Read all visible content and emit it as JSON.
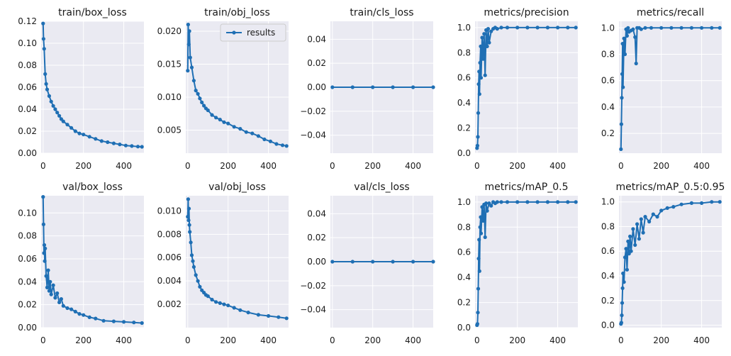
{
  "chart_data": [
    {
      "type": "line",
      "title": "train/box_loss",
      "xlim": [
        -10,
        500
      ],
      "ylim": [
        0,
        0.12
      ],
      "xticks": [
        0,
        200,
        400
      ],
      "xtick_labels": [
        "0",
        "200",
        "400"
      ],
      "yticks": [
        0.0,
        0.02,
        0.04,
        0.06,
        0.08,
        0.1,
        0.12
      ],
      "ytick_labels": [
        "0.00",
        "0.02",
        "0.04",
        "0.06",
        "0.08",
        "0.10",
        "0.12"
      ],
      "series": [
        {
          "name": "results",
          "color": "#1f6fb4",
          "x": [
            0,
            2,
            5,
            10,
            15,
            20,
            30,
            40,
            50,
            60,
            70,
            80,
            90,
            100,
            120,
            140,
            160,
            180,
            200,
            230,
            260,
            290,
            320,
            350,
            380,
            410,
            440,
            470,
            490
          ],
          "y": [
            0.118,
            0.104,
            0.095,
            0.072,
            0.063,
            0.058,
            0.052,
            0.047,
            0.043,
            0.04,
            0.037,
            0.034,
            0.031,
            0.029,
            0.026,
            0.023,
            0.02,
            0.018,
            0.017,
            0.015,
            0.013,
            0.011,
            0.01,
            0.009,
            0.008,
            0.007,
            0.0065,
            0.006,
            0.0058
          ]
        }
      ]
    },
    {
      "type": "line",
      "title": "train/obj_loss",
      "xlim": [
        -10,
        500
      ],
      "ylim": [
        0.0015,
        0.0215
      ],
      "xticks": [
        0,
        200,
        400
      ],
      "xtick_labels": [
        "0",
        "200",
        "400"
      ],
      "yticks": [
        0.005,
        0.01,
        0.015,
        0.02
      ],
      "ytick_labels": [
        "0.005",
        "0.010",
        "0.015",
        "0.020"
      ],
      "legend": {
        "labels": [
          "results"
        ],
        "location": "upper right"
      },
      "series": [
        {
          "name": "results",
          "color": "#1f6fb4",
          "x": [
            0,
            2,
            5,
            8,
            12,
            20,
            30,
            40,
            50,
            60,
            70,
            80,
            90,
            100,
            120,
            140,
            160,
            180,
            200,
            230,
            260,
            290,
            320,
            350,
            380,
            410,
            440,
            470,
            490
          ],
          "y": [
            0.014,
            0.021,
            0.018,
            0.02,
            0.016,
            0.0145,
            0.0125,
            0.011,
            0.0105,
            0.0098,
            0.0092,
            0.0087,
            0.0083,
            0.008,
            0.0073,
            0.0069,
            0.0066,
            0.0062,
            0.006,
            0.0055,
            0.0052,
            0.0047,
            0.0045,
            0.0041,
            0.0036,
            0.0033,
            0.0029,
            0.0027,
            0.0026
          ]
        }
      ]
    },
    {
      "type": "line",
      "title": "train/cls_loss",
      "xlim": [
        -10,
        500
      ],
      "ylim": [
        -0.055,
        0.055
      ],
      "xticks": [
        0,
        200,
        400
      ],
      "xtick_labels": [
        "0",
        "200",
        "400"
      ],
      "yticks": [
        -0.04,
        -0.02,
        0.0,
        0.02,
        0.04
      ],
      "ytick_labels": [
        "−0.04",
        "−0.02",
        "0.00",
        "0.02",
        "0.04"
      ],
      "series": [
        {
          "name": "results",
          "color": "#1f6fb4",
          "x": [
            0,
            100,
            200,
            300,
            400,
            500
          ],
          "y": [
            0,
            0,
            0,
            0,
            0,
            0
          ]
        }
      ]
    },
    {
      "type": "line",
      "title": "metrics/precision",
      "xlim": [
        -10,
        500
      ],
      "ylim": [
        0.0,
        1.05
      ],
      "xticks": [
        0,
        200,
        400
      ],
      "xtick_labels": [
        "0",
        "200",
        "400"
      ],
      "yticks": [
        0.0,
        0.2,
        0.4,
        0.6,
        0.8,
        1.0
      ],
      "ytick_labels": [
        "0.0",
        "0.2",
        "0.4",
        "0.6",
        "0.8",
        "1.0"
      ],
      "series": [
        {
          "name": "results",
          "color": "#1f6fb4",
          "x": [
            0,
            2,
            4,
            6,
            8,
            10,
            12,
            15,
            18,
            20,
            25,
            30,
            35,
            40,
            45,
            50,
            55,
            60,
            70,
            80,
            90,
            100,
            120,
            150,
            200,
            250,
            300,
            350,
            400,
            450,
            490
          ],
          "y": [
            0.04,
            0.06,
            0.13,
            0.32,
            0.55,
            0.65,
            0.47,
            0.72,
            0.85,
            0.6,
            0.92,
            0.75,
            0.95,
            0.62,
            0.98,
            0.85,
            0.99,
            0.88,
            0.97,
            0.99,
            1.0,
            0.99,
            1.0,
            1.0,
            1.0,
            1.0,
            1.0,
            1.0,
            1.0,
            1.0,
            1.0
          ]
        }
      ]
    },
    {
      "type": "line",
      "title": "metrics/recall",
      "xlim": [
        -10,
        500
      ],
      "ylim": [
        0.05,
        1.05
      ],
      "xticks": [
        0,
        200,
        400
      ],
      "xtick_labels": [
        "0",
        "200",
        "400"
      ],
      "yticks": [
        0.2,
        0.4,
        0.6,
        0.8,
        1.0
      ],
      "ytick_labels": [
        "0.2",
        "0.4",
        "0.6",
        "0.8",
        "1.0"
      ],
      "series": [
        {
          "name": "results",
          "color": "#1f6fb4",
          "x": [
            0,
            2,
            4,
            6,
            8,
            10,
            15,
            20,
            25,
            30,
            35,
            40,
            50,
            60,
            70,
            75,
            80,
            90,
            100,
            120,
            150,
            200,
            250,
            300,
            350,
            400,
            450,
            490
          ],
          "y": [
            0.08,
            0.27,
            0.47,
            0.65,
            0.88,
            0.55,
            0.92,
            0.8,
            0.99,
            0.94,
            1.0,
            0.97,
            0.98,
            0.99,
            0.93,
            0.73,
            1.0,
            1.0,
            0.99,
            1.0,
            1.0,
            1.0,
            1.0,
            1.0,
            1.0,
            1.0,
            1.0,
            1.0
          ]
        }
      ]
    },
    {
      "type": "line",
      "title": "val/box_loss",
      "xlim": [
        -10,
        500
      ],
      "ylim": [
        0.0,
        0.115
      ],
      "xticks": [
        0,
        200,
        400
      ],
      "xtick_labels": [
        "0",
        "200",
        "400"
      ],
      "yticks": [
        0.0,
        0.02,
        0.04,
        0.06,
        0.08,
        0.1
      ],
      "ytick_labels": [
        "0.00",
        "0.02",
        "0.04",
        "0.06",
        "0.08",
        "0.10"
      ],
      "series": [
        {
          "name": "results",
          "color": "#1f6fb4",
          "x": [
            0,
            2,
            4,
            6,
            8,
            10,
            15,
            20,
            25,
            30,
            35,
            40,
            50,
            60,
            70,
            80,
            90,
            100,
            120,
            140,
            160,
            180,
            200,
            230,
            260,
            300,
            350,
            400,
            450,
            490
          ],
          "y": [
            0.114,
            0.09,
            0.065,
            0.072,
            0.058,
            0.069,
            0.045,
            0.035,
            0.05,
            0.032,
            0.04,
            0.029,
            0.037,
            0.026,
            0.03,
            0.022,
            0.025,
            0.019,
            0.017,
            0.016,
            0.014,
            0.012,
            0.011,
            0.009,
            0.008,
            0.006,
            0.0055,
            0.005,
            0.0045,
            0.004
          ]
        }
      ]
    },
    {
      "type": "line",
      "title": "val/obj_loss",
      "xlim": [
        -10,
        500
      ],
      "ylim": [
        0.0,
        0.0113
      ],
      "xticks": [
        0,
        200,
        400
      ],
      "xtick_labels": [
        "0",
        "200",
        "400"
      ],
      "yticks": [
        0.002,
        0.004,
        0.006,
        0.008,
        0.01
      ],
      "ytick_labels": [
        "0.002",
        "0.004",
        "0.006",
        "0.008",
        "0.010"
      ],
      "series": [
        {
          "name": "results",
          "color": "#1f6fb4",
          "x": [
            0,
            2,
            4,
            6,
            8,
            10,
            15,
            20,
            25,
            30,
            40,
            50,
            60,
            70,
            80,
            90,
            100,
            120,
            140,
            160,
            180,
            200,
            230,
            260,
            300,
            350,
            400,
            450,
            490
          ],
          "y": [
            0.0095,
            0.011,
            0.0092,
            0.0102,
            0.0088,
            0.0082,
            0.0073,
            0.0062,
            0.0057,
            0.0052,
            0.0045,
            0.004,
            0.0035,
            0.0032,
            0.003,
            0.0028,
            0.0027,
            0.0024,
            0.0022,
            0.0021,
            0.002,
            0.0019,
            0.0017,
            0.0015,
            0.0013,
            0.0011,
            0.001,
            0.0009,
            0.0008
          ]
        }
      ]
    },
    {
      "type": "line",
      "title": "val/cls_loss",
      "xlim": [
        -10,
        500
      ],
      "ylim": [
        -0.055,
        0.055
      ],
      "xticks": [
        0,
        200,
        400
      ],
      "xtick_labels": [
        "0",
        "200",
        "400"
      ],
      "yticks": [
        -0.04,
        -0.02,
        0.0,
        0.02,
        0.04
      ],
      "ytick_labels": [
        "−0.04",
        "−0.02",
        "0.00",
        "0.02",
        "0.04"
      ],
      "series": [
        {
          "name": "results",
          "color": "#1f6fb4",
          "x": [
            0,
            100,
            200,
            300,
            400,
            500
          ],
          "y": [
            0,
            0,
            0,
            0,
            0,
            0
          ]
        }
      ]
    },
    {
      "type": "line",
      "title": "metrics/mAP_0.5",
      "xlim": [
        -10,
        500
      ],
      "ylim": [
        0.0,
        1.05
      ],
      "xticks": [
        0,
        200,
        400
      ],
      "xtick_labels": [
        "0",
        "200",
        "400"
      ],
      "yticks": [
        0.0,
        0.2,
        0.4,
        0.6,
        0.8,
        1.0
      ],
      "ytick_labels": [
        "0.0",
        "0.2",
        "0.4",
        "0.6",
        "0.8",
        "1.0"
      ],
      "series": [
        {
          "name": "results",
          "color": "#1f6fb4",
          "x": [
            0,
            2,
            4,
            6,
            8,
            10,
            12,
            15,
            18,
            20,
            25,
            30,
            35,
            40,
            45,
            50,
            60,
            70,
            80,
            90,
            100,
            120,
            150,
            200,
            250,
            300,
            350,
            400,
            450,
            490
          ],
          "y": [
            0.02,
            0.03,
            0.12,
            0.31,
            0.55,
            0.7,
            0.45,
            0.8,
            0.88,
            0.75,
            0.96,
            0.85,
            0.98,
            0.72,
            0.99,
            0.93,
            0.99,
            0.97,
            1.0,
            0.99,
            1.0,
            1.0,
            1.0,
            1.0,
            1.0,
            1.0,
            1.0,
            1.0,
            1.0,
            1.0
          ]
        }
      ]
    },
    {
      "type": "line",
      "title": "metrics/mAP_0.5:0.95",
      "xlim": [
        -10,
        500
      ],
      "ylim": [
        -0.02,
        1.05
      ],
      "xticks": [
        0,
        200,
        400
      ],
      "xtick_labels": [
        "0",
        "200",
        "400"
      ],
      "yticks": [
        0.0,
        0.2,
        0.4,
        0.6,
        0.8,
        1.0
      ],
      "ytick_labels": [
        "0.0",
        "0.2",
        "0.4",
        "0.6",
        "0.8",
        "1.0"
      ],
      "series": [
        {
          "name": "results",
          "color": "#1f6fb4",
          "x": [
            0,
            2,
            4,
            6,
            8,
            10,
            15,
            20,
            25,
            30,
            35,
            40,
            45,
            50,
            60,
            70,
            80,
            90,
            100,
            110,
            120,
            140,
            160,
            180,
            200,
            230,
            260,
            300,
            350,
            400,
            450,
            490
          ],
          "y": [
            0.01,
            0.02,
            0.08,
            0.18,
            0.3,
            0.42,
            0.35,
            0.55,
            0.62,
            0.45,
            0.68,
            0.58,
            0.72,
            0.6,
            0.78,
            0.65,
            0.82,
            0.7,
            0.86,
            0.75,
            0.88,
            0.84,
            0.9,
            0.88,
            0.93,
            0.95,
            0.96,
            0.98,
            0.99,
            0.99,
            1.0,
            1.0
          ]
        }
      ]
    }
  ],
  "colors": {
    "plot_bg": "#eaeaf2",
    "grid": "#ffffff",
    "line": "#1f6fb4"
  }
}
